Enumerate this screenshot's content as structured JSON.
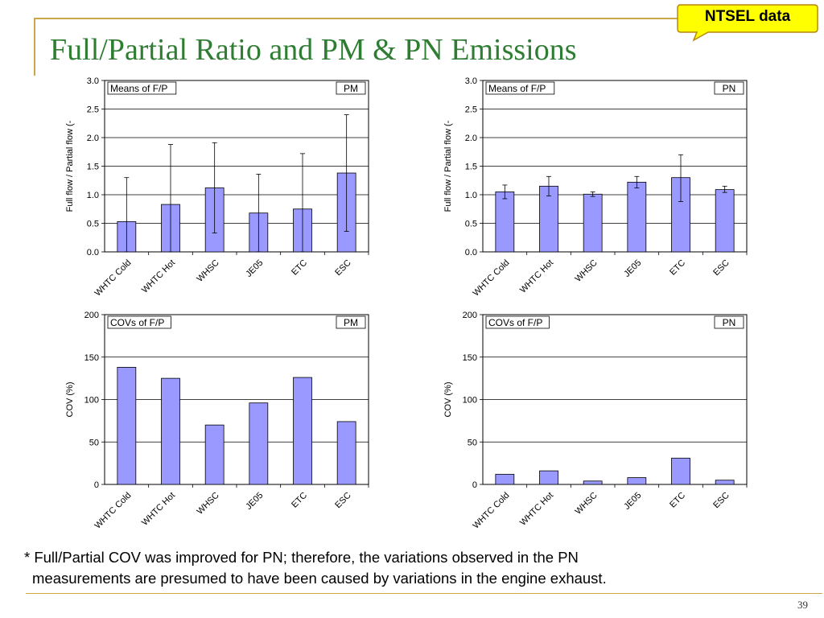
{
  "slide": {
    "title": "Full/Partial Ratio and PM & PN Emissions",
    "badge": "NTSEL data",
    "note_line1": "* Full/Partial COV was improved for PN; therefore, the variations observed in the PN",
    "note_line2": "measurements are presumed to have been caused by variations in the engine exhaust.",
    "page_number": "39"
  },
  "colors": {
    "bar": "#9999ff",
    "accent": "#c9a84a",
    "title": "#2e7d32",
    "badge": "#ffff00"
  },
  "chart_data": [
    {
      "type": "bar",
      "inset_label": "Means of F/P",
      "tag": "PM",
      "ylabel": "Full flow / Partial flow (-",
      "categories": [
        "WHTC Cold",
        "WHTC Hot",
        "WHSC",
        "JE05",
        "ETC",
        "ESC"
      ],
      "values": [
        0.53,
        0.83,
        1.12,
        0.68,
        0.75,
        1.38
      ],
      "error_low": [
        0.0,
        0.0,
        0.33,
        0.0,
        0.0,
        0.36
      ],
      "error_high": [
        1.3,
        1.88,
        1.91,
        1.36,
        1.72,
        2.4
      ],
      "ylim": [
        0,
        3.0
      ],
      "yticks": [
        "0.0",
        "0.5",
        "1.0",
        "1.5",
        "2.0",
        "2.5",
        "3.0"
      ]
    },
    {
      "type": "bar",
      "inset_label": "Means of F/P",
      "tag": "PN",
      "ylabel": "Full flow / Partial flow (-",
      "categories": [
        "WHTC Cold",
        "WHTC Hot",
        "WHSC",
        "JE05",
        "ETC",
        "ESC"
      ],
      "values": [
        1.05,
        1.15,
        1.01,
        1.22,
        1.3,
        1.09
      ],
      "error_low": [
        0.93,
        0.98,
        0.97,
        1.12,
        0.88,
        1.04
      ],
      "error_high": [
        1.17,
        1.32,
        1.05,
        1.32,
        1.7,
        1.15
      ],
      "ylim": [
        0,
        3.0
      ],
      "yticks": [
        "0.0",
        "0.5",
        "1.0",
        "1.5",
        "2.0",
        "2.5",
        "3.0"
      ]
    },
    {
      "type": "bar",
      "inset_label": "COVs of F/P",
      "tag": "PM",
      "ylabel": "COV (%)",
      "categories": [
        "WHTC Cold",
        "WHTC Hot",
        "WHSC",
        "JE05",
        "ETC",
        "ESC"
      ],
      "values": [
        138,
        125,
        70,
        96,
        126,
        74
      ],
      "ylim": [
        0,
        200
      ],
      "yticks": [
        "0",
        "50",
        "100",
        "150",
        "200"
      ]
    },
    {
      "type": "bar",
      "inset_label": "COVs of F/P",
      "tag": "PN",
      "ylabel": "COV (%)",
      "categories": [
        "WHTC Cold",
        "WHTC Hot",
        "WHSC",
        "JE05",
        "ETC",
        "ESC"
      ],
      "values": [
        12,
        16,
        4,
        8,
        31,
        5
      ],
      "ylim": [
        0,
        200
      ],
      "yticks": [
        "0",
        "50",
        "100",
        "150",
        "200"
      ]
    }
  ]
}
